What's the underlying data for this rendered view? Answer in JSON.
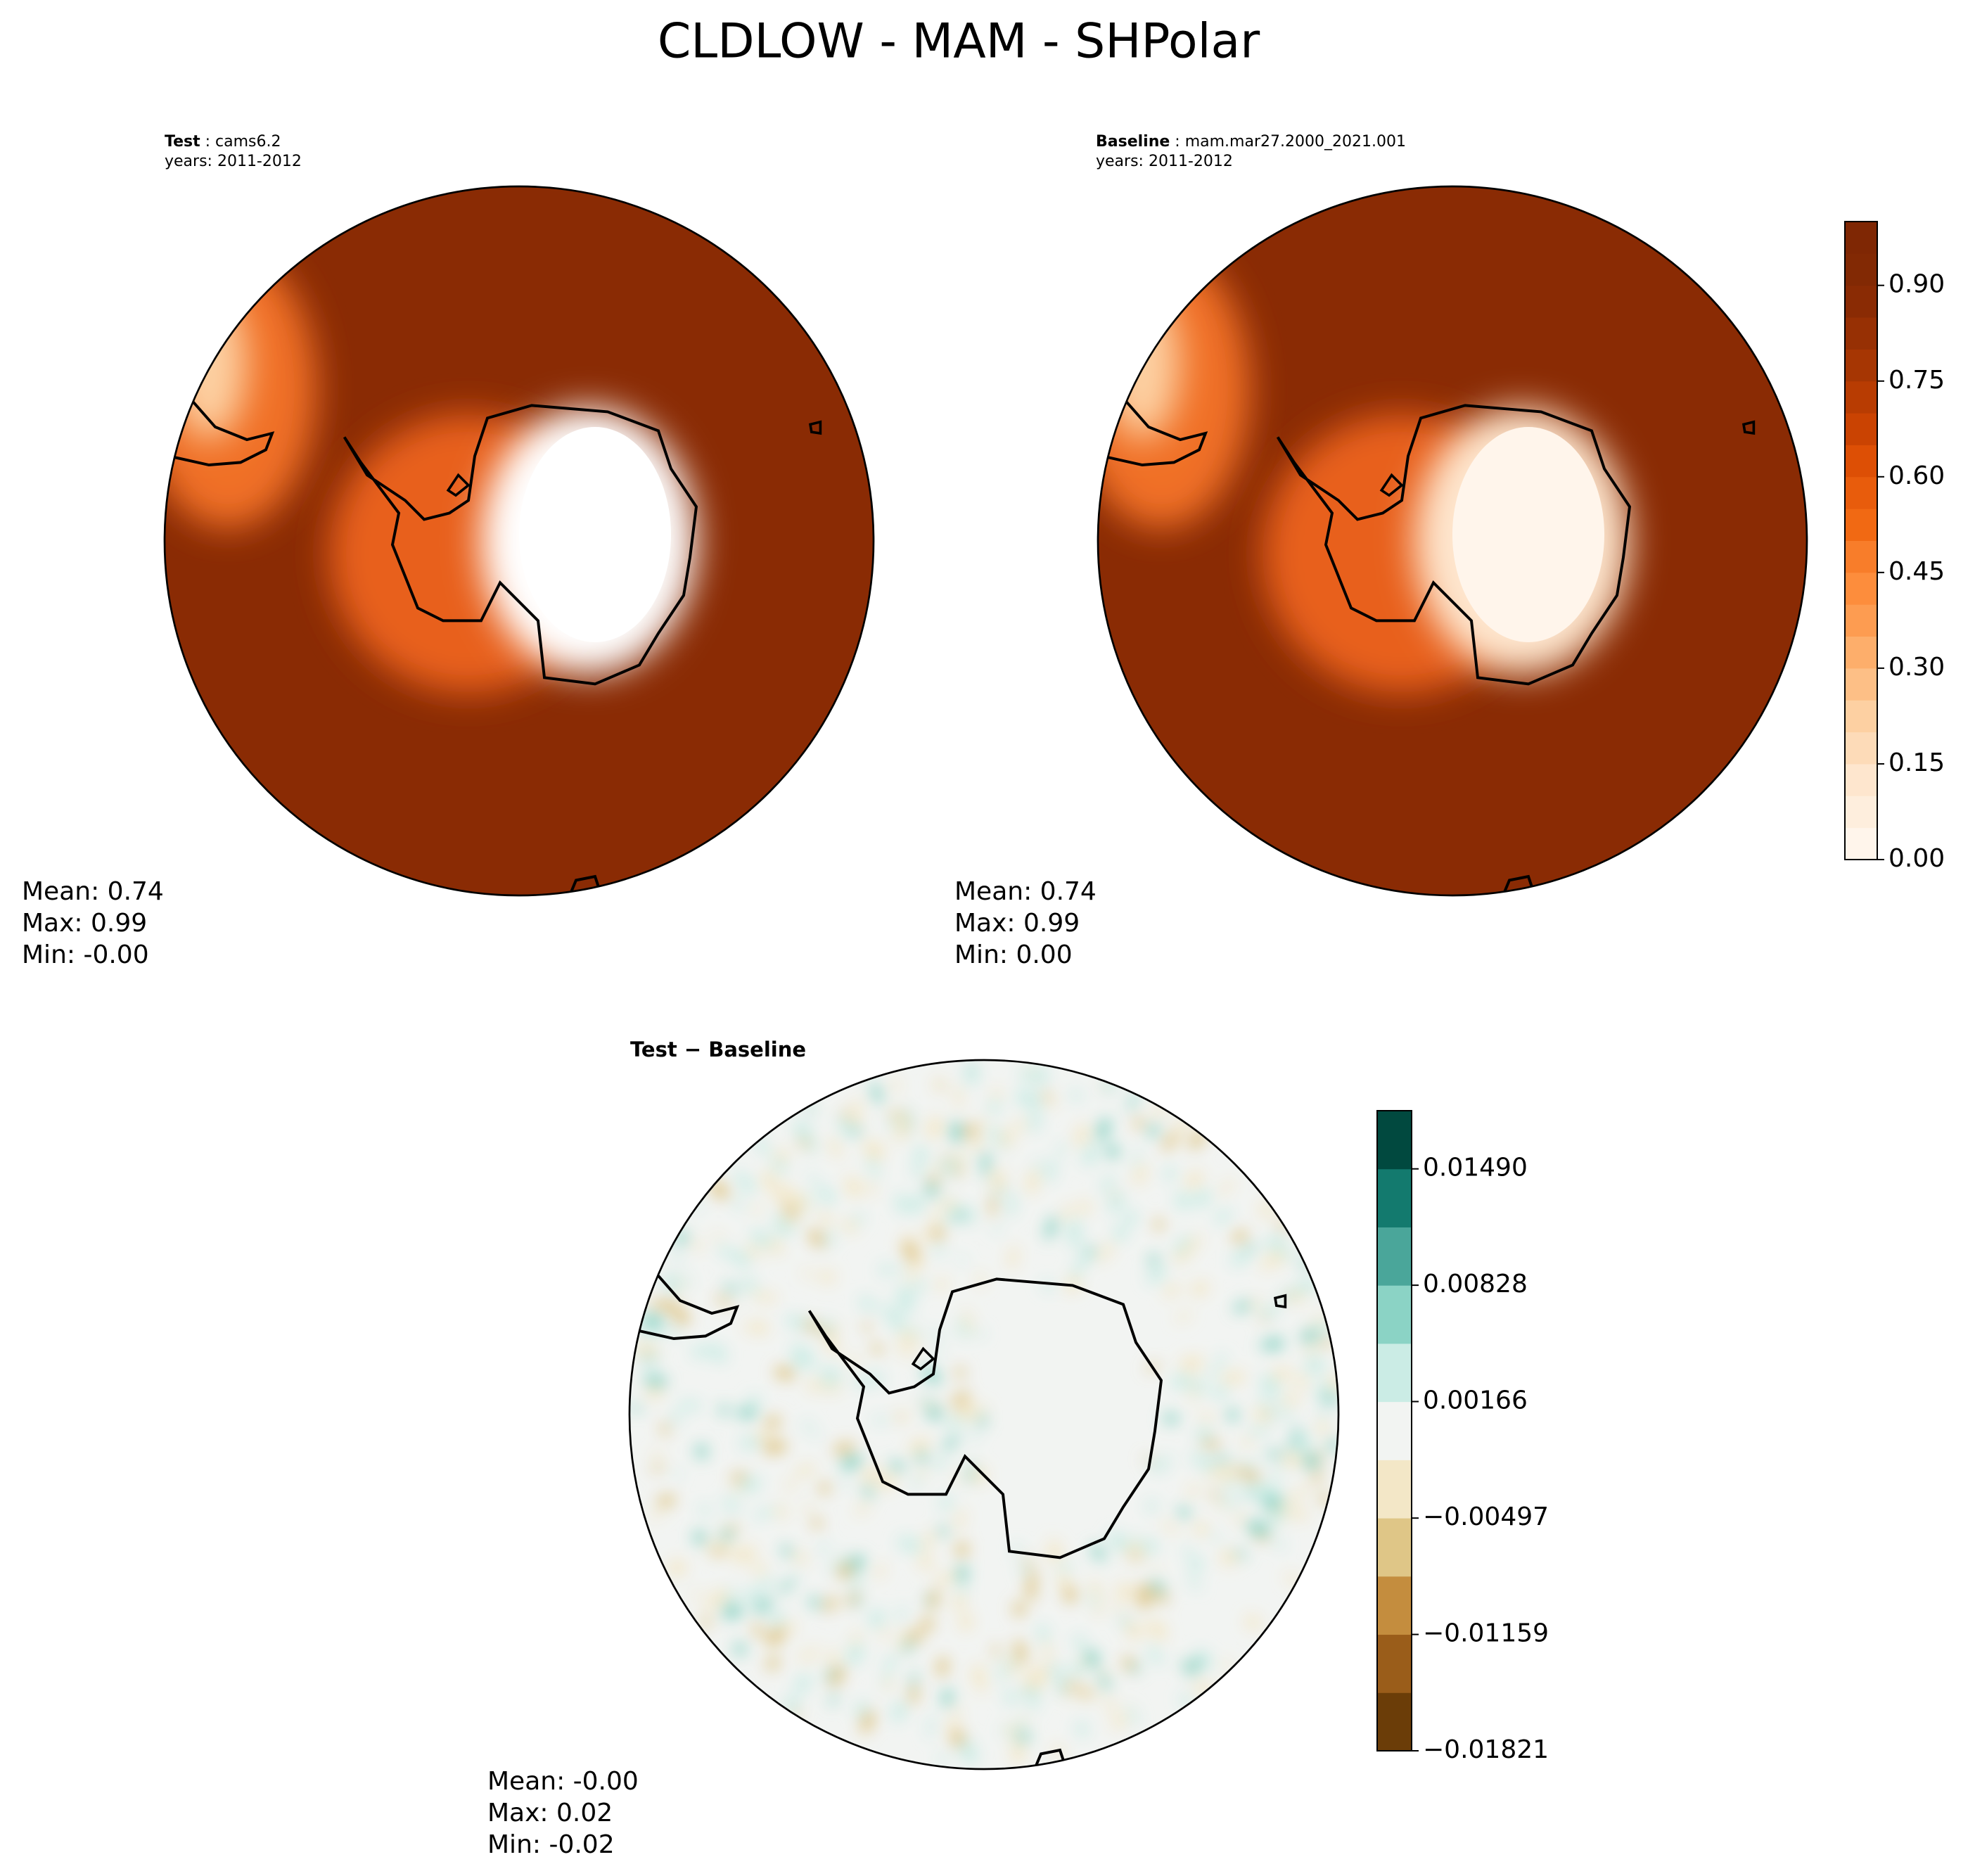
{
  "chart_data": {
    "type": "polar-map",
    "title": "CLDLOW - MAM - SHPolar",
    "panels": [
      {
        "name": "Test",
        "label": "cams6.2",
        "years": "years: 2011-2012",
        "stats": [
          "Mean:  0.74",
          "Max:  0.99",
          "Min: -0.00"
        ]
      },
      {
        "name": "Baseline",
        "label": "mam.mar27.2000_2021.001",
        "years": "years: 2011-2012",
        "stats": [
          "Mean:  0.74",
          "Max:  0.99",
          "Min:  0.00"
        ]
      },
      {
        "name": "Test − Baseline",
        "stats": [
          "Mean: -0.00",
          "Max:  0.02",
          "Min: -0.02"
        ]
      }
    ],
    "colorbars": [
      {
        "lim": [
          0,
          1
        ],
        "colors": [
          "#fff5eb",
          "#feeedd",
          "#fee6ce",
          "#fddbb8",
          "#fdd0a2",
          "#fdbf86",
          "#fdae6b",
          "#fd9c51",
          "#fd8d3c",
          "#f87d2a",
          "#f16913",
          "#e85c0c",
          "#dd4f05",
          "#ca4302",
          "#b83c02",
          "#a63603",
          "#973004",
          "#8a2b04",
          "#822904",
          "#7f2704"
        ],
        "ticks": [
          {
            "value": 0,
            "label": "0.00"
          },
          {
            "value": 0.15,
            "label": "0.15"
          },
          {
            "value": 0.3,
            "label": "0.30"
          },
          {
            "value": 0.45,
            "label": "0.45"
          },
          {
            "value": 0.6,
            "label": "0.60"
          },
          {
            "value": 0.75,
            "label": "0.75"
          },
          {
            "value": 0.9,
            "label": "0.90"
          }
        ]
      },
      {
        "lim": [
          -0.01821,
          0.01821
        ],
        "colors": [
          "#6b3d08",
          "#9a5d1a",
          "#c48d3e",
          "#dfc687",
          "#f3e7c7",
          "#f2f4f2",
          "#cbece5",
          "#8bd3c5",
          "#4aa69a",
          "#137a6e",
          "#01493f"
        ],
        "ticks": [
          {
            "value": -0.01821,
            "label": "−0.01821"
          },
          {
            "value": -0.01159,
            "label": "−0.01159"
          },
          {
            "value": -0.00497,
            "label": "−0.00497"
          },
          {
            "value": 0.00166,
            "label": "0.00166"
          },
          {
            "value": 0.00828,
            "label": "0.00828"
          },
          {
            "value": 0.0149,
            "label": "0.01490"
          }
        ]
      }
    ]
  }
}
